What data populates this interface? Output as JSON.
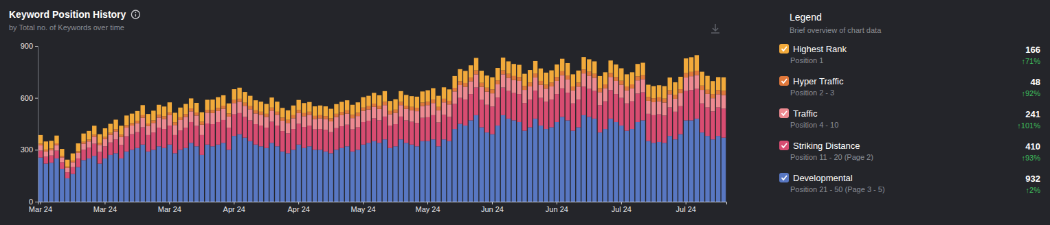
{
  "chart_data": {
    "type": "bar",
    "title": "Keyword Position History",
    "subtitle": "by Total no. of Keywords over time",
    "legend_title": "Legend",
    "legend_subtitle": "Brief overview of chart data",
    "stacked": true,
    "grid": false,
    "legend": "right",
    "ylim": [
      0,
      900
    ],
    "yticks": [
      0,
      300,
      600,
      900
    ],
    "categories": [
      "Mar 24",
      null,
      null,
      null,
      null,
      null,
      null,
      null,
      null,
      null,
      null,
      null,
      "Mar 24",
      null,
      null,
      null,
      null,
      null,
      null,
      null,
      null,
      null,
      null,
      null,
      "Mar 24",
      null,
      null,
      null,
      null,
      null,
      null,
      null,
      null,
      null,
      null,
      null,
      "Apr 24",
      null,
      null,
      null,
      null,
      null,
      null,
      null,
      null,
      null,
      null,
      null,
      "Apr 24",
      null,
      null,
      null,
      null,
      null,
      null,
      null,
      null,
      null,
      null,
      null,
      "May 24",
      null,
      null,
      null,
      null,
      null,
      null,
      null,
      null,
      null,
      null,
      null,
      "May 24",
      null,
      null,
      null,
      null,
      null,
      null,
      null,
      null,
      null,
      null,
      null,
      "Jun 24",
      null,
      null,
      null,
      null,
      null,
      null,
      null,
      null,
      null,
      null,
      null,
      "Jun 24",
      null,
      null,
      null,
      null,
      null,
      null,
      null,
      null,
      null,
      null,
      null,
      "Jul 24",
      null,
      null,
      null,
      null,
      null,
      null,
      null,
      null,
      null,
      null,
      null,
      "Jul 24",
      null,
      null,
      null,
      null,
      null,
      null,
      null
    ],
    "series": [
      {
        "name": "Highest Rank",
        "positions": "Position 1",
        "total": 166,
        "change": {
          "value": 71,
          "label": "↑71%"
        },
        "color": "#f2aa3b",
        "values": [
          50,
          48,
          45,
          45,
          40,
          40,
          42,
          45,
          48,
          50,
          52,
          50,
          50,
          52,
          55,
          52,
          56,
          55,
          56,
          58,
          55,
          56,
          58,
          56,
          58,
          55,
          56,
          58,
          58,
          56,
          55,
          58,
          60,
          62,
          60,
          58,
          62,
          64,
          62,
          60,
          58,
          58,
          57,
          58,
          58,
          56,
          55,
          56,
          58,
          58,
          56,
          55,
          56,
          56,
          55,
          56,
          58,
          58,
          58,
          60,
          60,
          60,
          62,
          60,
          62,
          58,
          60,
          62,
          62,
          62,
          64,
          64,
          66,
          66,
          64,
          66,
          66,
          68,
          70,
          70,
          70,
          72,
          70,
          70,
          70,
          72,
          74,
          72,
          70,
          70,
          70,
          72,
          72,
          72,
          70,
          70,
          72,
          72,
          72,
          70,
          70,
          72,
          72,
          72,
          70,
          70,
          72,
          72,
          72,
          70,
          70,
          72,
          72,
          70,
          70,
          70,
          72,
          74,
          72,
          72,
          85,
          85,
          90,
          80,
          80,
          75,
          75,
          78
        ]
      },
      {
        "name": "Hyper Traffic",
        "positions": "Position 2 - 3",
        "total": 48,
        "change": {
          "value": 92,
          "label": "↑92%"
        },
        "color": "#e0783b",
        "values": [
          10,
          10,
          10,
          10,
          9,
          8,
          9,
          10,
          11,
          11,
          12,
          12,
          12,
          12,
          13,
          13,
          14,
          14,
          14,
          15,
          15,
          15,
          16,
          16,
          16,
          16,
          16,
          17,
          17,
          17,
          17,
          17,
          18,
          18,
          18,
          18,
          18,
          18,
          18,
          18,
          18,
          18,
          18,
          18,
          18,
          18,
          18,
          18,
          18,
          18,
          18,
          18,
          18,
          18,
          18,
          19,
          19,
          19,
          19,
          19,
          19,
          19,
          19,
          19,
          19,
          19,
          19,
          19,
          19,
          20,
          20,
          20,
          20,
          20,
          20,
          21,
          21,
          21,
          22,
          22,
          22,
          23,
          23,
          23,
          23,
          23,
          23,
          23,
          23,
          23,
          23,
          23,
          23,
          23,
          23,
          23,
          23,
          23,
          23,
          23,
          23,
          23,
          23,
          23,
          23,
          23,
          23,
          23,
          23,
          23,
          23,
          23,
          23,
          23,
          23,
          23,
          23,
          23,
          23,
          23,
          25,
          25,
          25,
          25,
          24,
          24,
          24,
          25
        ]
      },
      {
        "name": "Traffic",
        "positions": "Position 4 - 10",
        "total": 241,
        "change": {
          "value": 101,
          "label": "↑101%"
        },
        "color": "#ee8a91",
        "values": [
          30,
          30,
          30,
          32,
          28,
          25,
          28,
          32,
          35,
          36,
          40,
          40,
          42,
          44,
          46,
          46,
          50,
          50,
          52,
          55,
          52,
          55,
          58,
          58,
          60,
          58,
          60,
          62,
          62,
          60,
          60,
          62,
          64,
          64,
          65,
          64,
          65,
          65,
          64,
          64,
          62,
          62,
          62,
          64,
          62,
          60,
          60,
          62,
          62,
          62,
          62,
          60,
          62,
          62,
          62,
          64,
          64,
          64,
          65,
          65,
          65,
          65,
          66,
          66,
          66,
          65,
          65,
          66,
          66,
          66,
          68,
          68,
          70,
          70,
          70,
          72,
          72,
          72,
          74,
          74,
          74,
          76,
          76,
          76,
          76,
          76,
          76,
          76,
          75,
          76,
          76,
          76,
          76,
          75,
          75,
          76,
          76,
          76,
          76,
          75,
          75,
          76,
          76,
          76,
          75,
          75,
          76,
          76,
          76,
          75,
          75,
          76,
          76,
          75,
          75,
          75,
          75,
          76,
          75,
          75,
          78,
          80,
          80,
          78,
          78,
          76,
          76,
          78
        ]
      },
      {
        "name": "Striking Distance",
        "positions": "Position 11 - 20 (Page 2)",
        "total": 410,
        "change": {
          "value": 93,
          "label": "↑93%"
        },
        "color": "#d84c71",
        "values": [
          40,
          40,
          42,
          45,
          38,
          35,
          40,
          50,
          60,
          62,
          70,
          68,
          70,
          72,
          80,
          78,
          88,
          90,
          92,
          100,
          95,
          100,
          108,
          110,
          110,
          105,
          112,
          118,
          120,
          118,
          115,
          122,
          128,
          130,
          132,
          128,
          125,
          122,
          120,
          120,
          118,
          120,
          118,
          122,
          120,
          118,
          115,
          120,
          120,
          122,
          120,
          118,
          120,
          125,
          122,
          125,
          126,
          125,
          128,
          130,
          130,
          128,
          132,
          130,
          132,
          130,
          128,
          132,
          130,
          132,
          135,
          135,
          138,
          140,
          138,
          142,
          140,
          145,
          150,
          150,
          152,
          160,
          158,
          160,
          160,
          162,
          160,
          160,
          158,
          162,
          160,
          160,
          162,
          160,
          158,
          160,
          162,
          165,
          160,
          158,
          160,
          165,
          162,
          160,
          158,
          160,
          165,
          162,
          160,
          158,
          160,
          165,
          162,
          158,
          160,
          160,
          158,
          165,
          160,
          162,
          170,
          175,
          172,
          168,
          165,
          162,
          165,
          168
        ]
      },
      {
        "name": "Developmental",
        "positions": "Position 21 - 50 (Page 3 - 5)",
        "total": 932,
        "change": {
          "value": 2,
          "label": "↑2%"
        },
        "color": "#5877c2",
        "values": [
          255,
          220,
          225,
          250,
          190,
          135,
          160,
          200,
          240,
          250,
          265,
          220,
          250,
          270,
          280,
          250,
          290,
          300,
          310,
          330,
          290,
          300,
          320,
          310,
          330,
          280,
          300,
          310,
          340,
          320,
          270,
          330,
          320,
          330,
          340,
          300,
          380,
          390,
          370,
          350,
          330,
          320,
          310,
          340,
          320,
          290,
          280,
          300,
          330,
          310,
          320,
          300,
          300,
          290,
          280,
          300,
          310,
          320,
          290,
          300,
          330,
          340,
          350,
          340,
          360,
          310,
          320,
          360,
          340,
          330,
          320,
          350,
          350,
          360,
          320,
          360,
          350,
          420,
          450,
          440,
          470,
          500,
          430,
          400,
          390,
          440,
          500,
          480,
          470,
          460,
          410,
          430,
          480,
          440,
          420,
          430,
          460,
          490,
          470,
          410,
          430,
          500,
          490,
          480,
          400,
          420,
          480,
          460,
          440,
          410,
          420,
          460,
          470,
          350,
          340,
          345,
          340,
          380,
          360,
          390,
          470,
          470,
          480,
          400,
          380,
          360,
          380,
          370
        ]
      }
    ]
  }
}
